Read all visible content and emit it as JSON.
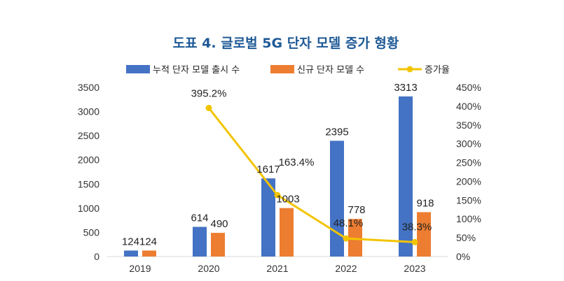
{
  "chart_data": {
    "type": "bar",
    "title": "도표 4. 글로벌 5G 단자 모델 증가 형황",
    "categories": [
      "2019",
      "2020",
      "2021",
      "2022",
      "2023"
    ],
    "series": [
      {
        "name": "누적 단자 모델 출시 수",
        "type": "bar",
        "axis": "left",
        "color": "#4472c4",
        "values": [
          124,
          614,
          1617,
          2395,
          3313
        ],
        "labels": [
          "124",
          "614",
          "1617",
          "2395",
          "3313"
        ]
      },
      {
        "name": "신규 단자 모델 수",
        "type": "bar",
        "axis": "left",
        "color": "#ed7d31",
        "values": [
          124,
          490,
          1003,
          778,
          918
        ],
        "labels": [
          "124",
          "490",
          "1003",
          "778",
          "918"
        ]
      },
      {
        "name": "증가율",
        "type": "line",
        "axis": "right",
        "color": "#f2c400",
        "values": [
          null,
          395.2,
          163.4,
          48.1,
          38.3
        ],
        "labels": [
          "",
          "395.2%",
          "163.4%",
          "48.1%",
          "38.3%"
        ]
      }
    ],
    "y_left": {
      "min": 0,
      "max": 3500,
      "ticks": [
        "0",
        "500",
        "1000",
        "1500",
        "2000",
        "2500",
        "3000",
        "3500"
      ]
    },
    "y_right": {
      "min": 0,
      "max": 450,
      "ticks": [
        "0%",
        "50%",
        "100%",
        "150%",
        "200%",
        "250%",
        "300%",
        "350%",
        "400%",
        "450%"
      ]
    },
    "grid": false,
    "legend": "top"
  }
}
